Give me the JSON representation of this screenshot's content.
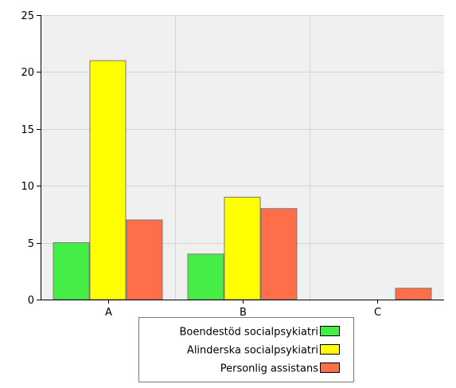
{
  "chart_data": {
    "type": "bar",
    "title": "",
    "xlabel": "",
    "ylabel": "",
    "categories": [
      "A",
      "B",
      "C"
    ],
    "ylim": [
      0,
      25
    ],
    "yticks": [
      0,
      5,
      10,
      15,
      20,
      25
    ],
    "grid": true,
    "legend_position": "bottom-center",
    "series": [
      {
        "name": "Boendestöd socialpsykiatri",
        "color": "#44ee44",
        "values": [
          5,
          4,
          0
        ]
      },
      {
        "name": "Alinderska socialpsykiatri",
        "color": "#ffff00",
        "values": [
          21,
          9,
          0
        ]
      },
      {
        "name": "Personlig assistans",
        "color": "#ff6e4a",
        "values": [
          7,
          8,
          1
        ]
      }
    ],
    "plot_background": "#f0f0f0",
    "grid_color": "#d4d4d4"
  }
}
